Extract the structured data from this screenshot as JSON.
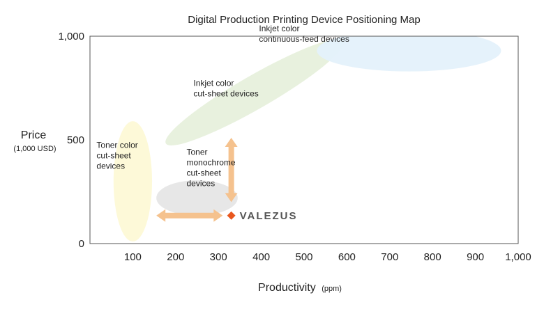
{
  "chart_data": {
    "type": "scatter",
    "title": "Digital Production Printing Device Positioning Map",
    "xlabel": "Productivity",
    "xlabel_unit": "(ppm)",
    "ylabel": "Price",
    "ylabel_unit": "(1,000 USD)",
    "xlim": [
      0,
      1000
    ],
    "ylim": [
      0,
      1000
    ],
    "x_ticks": [
      {
        "value": 100,
        "label": "100"
      },
      {
        "value": 200,
        "label": "200"
      },
      {
        "value": 300,
        "label": "300"
      },
      {
        "value": 400,
        "label": "400"
      },
      {
        "value": 500,
        "label": "500"
      },
      {
        "value": 600,
        "label": "600"
      },
      {
        "value": 700,
        "label": "700"
      },
      {
        "value": 800,
        "label": "800"
      },
      {
        "value": 900,
        "label": "900"
      },
      {
        "value": 1000,
        "label": "1,000"
      }
    ],
    "y_ticks": [
      {
        "value": 0,
        "label": "0"
      },
      {
        "value": 500,
        "label": "500"
      },
      {
        "value": 1000,
        "label": "1,000"
      }
    ],
    "grid": false,
    "regions": [
      {
        "label": [
          "Toner color",
          "cut-sheet",
          "devices"
        ],
        "cx": 100,
        "cy": 300,
        "rx": 45,
        "ry": 290,
        "angle": 0,
        "color": "#fdf9d6"
      },
      {
        "label": [
          "Toner",
          "monochrome",
          "cut-sheet",
          "devices"
        ],
        "cx": 250,
        "cy": 220,
        "rx": 95,
        "ry": 85,
        "angle": 0,
        "color": "#e6e6e6"
      },
      {
        "label": [
          "Inkjet color",
          "cut-sheet devices"
        ],
        "cx": 385,
        "cy": 730,
        "rx": 240,
        "ry": 80,
        "angle": -30,
        "color": "#e7f0dc"
      },
      {
        "label": [
          "Inkjet color",
          "continuous-feed devices"
        ],
        "cx": 745,
        "cy": 930,
        "rx": 215,
        "ry": 100,
        "angle": 0,
        "color": "#e4f1fb"
      }
    ],
    "point": {
      "name": "VALEZUS",
      "x": 330,
      "y": 135,
      "color": "#e8571e"
    },
    "arrows": [
      {
        "direction": "horizontal",
        "from": 155,
        "to": 310,
        "at": 135,
        "color": "#f5c28e"
      },
      {
        "direction": "vertical",
        "from": 200,
        "to": 510,
        "at": 330,
        "color": "#f5c28e"
      }
    ]
  }
}
